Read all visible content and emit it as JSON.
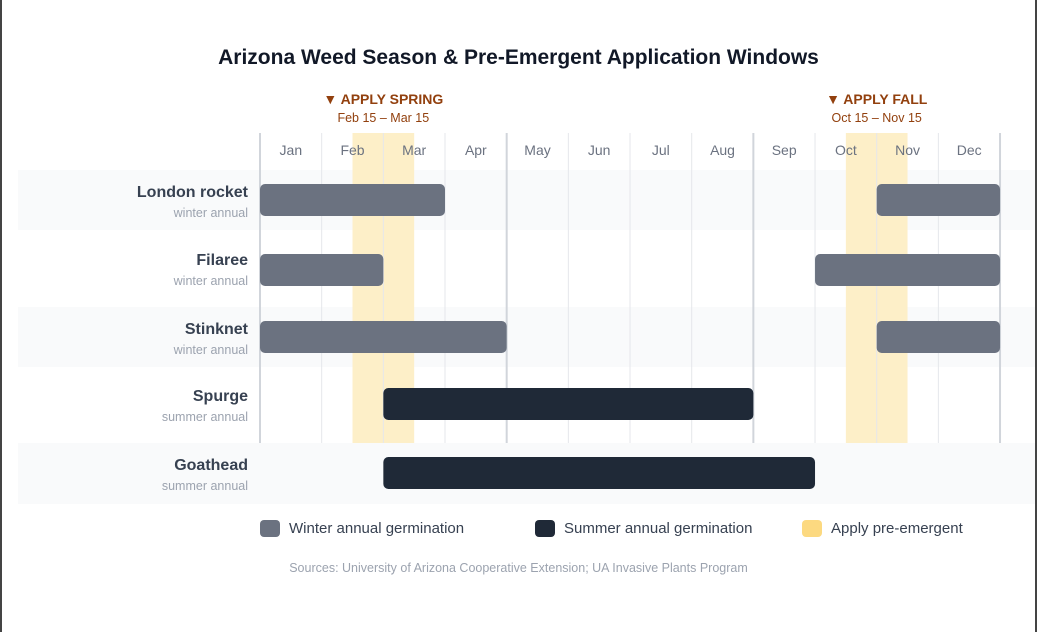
{
  "chart_data": {
    "type": "gantt",
    "title": "Arizona Weed Season & Pre-Emergent Application Windows",
    "months": [
      "Jan",
      "Feb",
      "Mar",
      "Apr",
      "May",
      "Jun",
      "Jul",
      "Aug",
      "Sep",
      "Oct",
      "Nov",
      "Dec"
    ],
    "windows": [
      {
        "label": "▼ APPLY SPRING",
        "range_label": "Feb 15 – Mar 15",
        "start_month": 1.5,
        "end_month": 2.5
      },
      {
        "label": "▼ APPLY FALL",
        "range_label": "Oct 15 – Nov 15",
        "start_month": 9.5,
        "end_month": 10.5
      }
    ],
    "rows": [
      {
        "name": "London rocket",
        "type_label": "winter annual",
        "kind": "winter",
        "bars": [
          [
            0,
            3
          ],
          [
            10,
            12
          ]
        ]
      },
      {
        "name": "Filaree",
        "type_label": "winter annual",
        "kind": "winter",
        "bars": [
          [
            0,
            2
          ],
          [
            9,
            12
          ]
        ]
      },
      {
        "name": "Stinknet",
        "type_label": "winter annual",
        "kind": "winter",
        "bars": [
          [
            0,
            4
          ],
          [
            10,
            12
          ]
        ]
      },
      {
        "name": "Spurge",
        "type_label": "summer annual",
        "kind": "summer",
        "bars": [
          [
            2,
            8
          ]
        ]
      },
      {
        "name": "Goathead",
        "type_label": "summer annual",
        "kind": "summer",
        "bars": [
          [
            2,
            9
          ]
        ]
      }
    ],
    "legend": [
      {
        "label": "Winter annual germination",
        "color": "#6b7280"
      },
      {
        "label": "Summer annual germination",
        "color": "#1f2937"
      },
      {
        "label": "Apply pre-emergent",
        "color": "#fcd980"
      }
    ],
    "colors": {
      "winter": "#6b7280",
      "summer": "#1f2937",
      "window": "#fdefc8",
      "window_text": "#92400e",
      "row_alt": "#f9fafb"
    }
  },
  "source": "Sources: University of Arizona Cooperative Extension; UA Invasive Plants Program"
}
